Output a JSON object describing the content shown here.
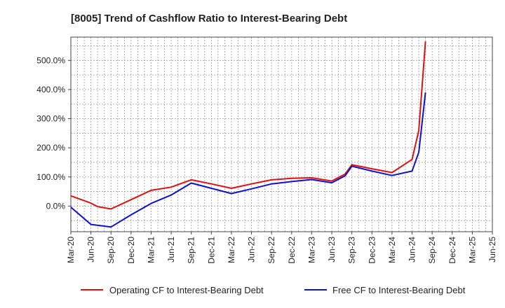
{
  "chart_data": {
    "type": "line",
    "title": "[8005]  Trend of Cashflow Ratio to Interest-Bearing Debt",
    "xlabel": "",
    "ylabel": "",
    "x_ticks": [
      "Mar-20",
      "Jun-20",
      "Sep-20",
      "Dec-20",
      "Mar-21",
      "Jun-21",
      "Sep-21",
      "Dec-21",
      "Mar-22",
      "Jun-22",
      "Sep-22",
      "Dec-22",
      "Mar-23",
      "Jun-23",
      "Sep-23",
      "Dec-23",
      "Mar-24",
      "Jun-24",
      "Sep-24",
      "Dec-24",
      "Mar-25",
      "Jun-25"
    ],
    "y_ticks": [
      {
        "value": 0,
        "label": "0.0%"
      },
      {
        "value": 100,
        "label": "100.0%"
      },
      {
        "value": 200,
        "label": "200.0%"
      },
      {
        "value": 300,
        "label": "300.0%"
      },
      {
        "value": 400,
        "label": "400.0%"
      },
      {
        "value": 500,
        "label": "500.0%"
      }
    ],
    "ylim": [
      -88,
      580
    ],
    "grid": true,
    "legend_position": "bottom",
    "series": [
      {
        "name": "Operating CF to Interest-Bearing Debt",
        "color": "#dd1111",
        "points": [
          {
            "x": "Mar-20",
            "y": 35
          },
          {
            "x": "Jun-20",
            "y": 10
          },
          {
            "x": "Jul-20",
            "y": -2
          },
          {
            "x": "Sep-20",
            "y": -10
          },
          {
            "x": "Dec-20",
            "y": 22
          },
          {
            "x": "Mar-21",
            "y": 54
          },
          {
            "x": "Jun-21",
            "y": 65
          },
          {
            "x": "Sep-21",
            "y": 90
          },
          {
            "x": "Dec-21",
            "y": 76
          },
          {
            "x": "Mar-22",
            "y": 61
          },
          {
            "x": "Jun-22",
            "y": 76
          },
          {
            "x": "Sep-22",
            "y": 90
          },
          {
            "x": "Dec-22",
            "y": 95
          },
          {
            "x": "Mar-23",
            "y": 97
          },
          {
            "x": "Jun-23",
            "y": 86
          },
          {
            "x": "Aug-23",
            "y": 110
          },
          {
            "x": "Sep-23",
            "y": 142
          },
          {
            "x": "Dec-23",
            "y": 128
          },
          {
            "x": "Mar-24",
            "y": 115
          },
          {
            "x": "Jun-24",
            "y": 160
          },
          {
            "x": "Jul-24",
            "y": 260
          },
          {
            "x": "Aug-24",
            "y": 565
          }
        ]
      },
      {
        "name": "Free CF to Interest-Bearing Debt",
        "color": "#1111cc",
        "points": [
          {
            "x": "Mar-20",
            "y": -4
          },
          {
            "x": "Jun-20",
            "y": -63
          },
          {
            "x": "Sep-20",
            "y": -72
          },
          {
            "x": "Dec-20",
            "y": -30
          },
          {
            "x": "Mar-21",
            "y": 9
          },
          {
            "x": "Jun-21",
            "y": 38
          },
          {
            "x": "Sep-21",
            "y": 79
          },
          {
            "x": "Dec-21",
            "y": 61
          },
          {
            "x": "Mar-22",
            "y": 43
          },
          {
            "x": "Jun-22",
            "y": 59
          },
          {
            "x": "Sep-22",
            "y": 76
          },
          {
            "x": "Dec-22",
            "y": 84
          },
          {
            "x": "Mar-23",
            "y": 91
          },
          {
            "x": "Jun-23",
            "y": 80
          },
          {
            "x": "Aug-23",
            "y": 104
          },
          {
            "x": "Sep-23",
            "y": 137
          },
          {
            "x": "Dec-23",
            "y": 120
          },
          {
            "x": "Mar-24",
            "y": 105
          },
          {
            "x": "Jun-24",
            "y": 120
          },
          {
            "x": "Jul-24",
            "y": 185
          },
          {
            "x": "Aug-24",
            "y": 390
          }
        ]
      }
    ]
  }
}
